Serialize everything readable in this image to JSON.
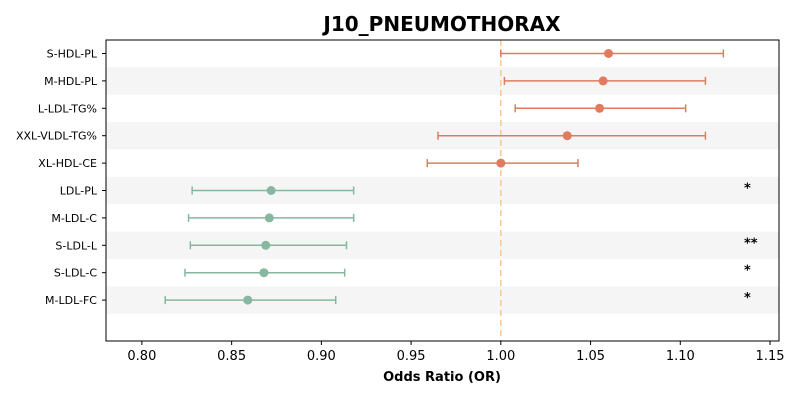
{
  "chart_data": {
    "type": "forest",
    "title": "J10_PNEUMOTHORAX",
    "xlabel": "Odds Ratio (OR)",
    "xlim": [
      0.78,
      1.155
    ],
    "xticks": [
      "0.80",
      "0.85",
      "0.90",
      "0.95",
      "1.00",
      "1.05",
      "1.10",
      "1.15"
    ],
    "reference_line": 1.0,
    "colors": {
      "positive": "#E07B5F",
      "negative": "#86B8A0",
      "reference": "#F5C98A",
      "stripe": "#F5F5F5"
    },
    "rows": [
      {
        "label": "S-HDL-PL",
        "or": 1.06,
        "lo": 1.0,
        "hi": 1.124,
        "sig": ""
      },
      {
        "label": "M-HDL-PL",
        "or": 1.057,
        "lo": 1.002,
        "hi": 1.114,
        "sig": ""
      },
      {
        "label": "L-LDL-TG%",
        "or": 1.055,
        "lo": 1.008,
        "hi": 1.103,
        "sig": ""
      },
      {
        "label": "XXL-VLDL-TG%",
        "or": 1.037,
        "lo": 0.965,
        "hi": 1.114,
        "sig": ""
      },
      {
        "label": "XL-HDL-CE",
        "or": 1.0,
        "lo": 0.959,
        "hi": 1.043,
        "sig": ""
      },
      {
        "label": "LDL-PL",
        "or": 0.872,
        "lo": 0.828,
        "hi": 0.918,
        "sig": "*"
      },
      {
        "label": "M-LDL-C",
        "or": 0.871,
        "lo": 0.826,
        "hi": 0.918,
        "sig": ""
      },
      {
        "label": "S-LDL-L",
        "or": 0.869,
        "lo": 0.827,
        "hi": 0.914,
        "sig": "**"
      },
      {
        "label": "S-LDL-C",
        "or": 0.868,
        "lo": 0.824,
        "hi": 0.913,
        "sig": "*"
      },
      {
        "label": "M-LDL-FC",
        "or": 0.859,
        "lo": 0.813,
        "hi": 0.908,
        "sig": "*"
      }
    ]
  }
}
